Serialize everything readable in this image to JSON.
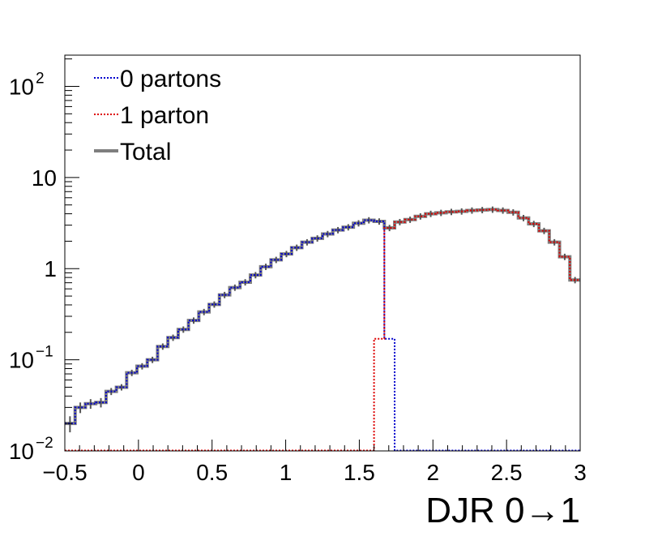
{
  "chart_data": {
    "type": "line",
    "subtype": "step-histogram",
    "title": "",
    "xlabel": "DJR 0→1",
    "ylabel": "",
    "xlim": [
      -0.5,
      3.0
    ],
    "ylim": [
      0.01,
      220
    ],
    "yscale": "log",
    "grid": false,
    "legend": "top-left",
    "bin_width": 0.07,
    "x_tick_labels": [
      "−0.5",
      "0",
      "0.5",
      "1",
      "1.5",
      "2",
      "2.5",
      "3"
    ],
    "x_ticks": [
      -0.5,
      0,
      0.5,
      1,
      1.5,
      2,
      2.5,
      3
    ],
    "y_tick_labels": [
      {
        "value": 100,
        "base": "10",
        "exp": "2"
      },
      {
        "value": 10,
        "base": "10",
        "exp": ""
      },
      {
        "value": 1,
        "base": "1",
        "exp": ""
      },
      {
        "value": 0.1,
        "base": "10",
        "exp": "−1"
      },
      {
        "value": 0.01,
        "base": "10",
        "exp": "−2"
      }
    ],
    "series": [
      {
        "name": "0 partons",
        "color": "#0000cc",
        "style": "dotted",
        "x_start": -0.5,
        "values": [
          0.02,
          0.03,
          0.033,
          0.034,
          0.045,
          0.05,
          0.072,
          0.085,
          0.1,
          0.14,
          0.175,
          0.215,
          0.27,
          0.335,
          0.405,
          0.515,
          0.62,
          0.71,
          0.85,
          1.05,
          1.25,
          1.45,
          1.7,
          1.95,
          2.15,
          2.4,
          2.65,
          2.85,
          3.15,
          3.4,
          3.3,
          0.17,
          0.0101,
          0.0101,
          0.0101,
          0.0101,
          0.0101,
          0.0101,
          0.0101,
          0.0101,
          0.0101,
          0.0101,
          0.0101,
          0.0101,
          0.0101,
          0.0101,
          0.0101,
          0.0101,
          0.0101,
          0.0101
        ]
      },
      {
        "name": "1 parton",
        "color": "#dd0000",
        "style": "dotted",
        "x_start": -0.5,
        "values": [
          0.0101,
          0.0101,
          0.0101,
          0.0101,
          0.0101,
          0.0101,
          0.0101,
          0.0101,
          0.0101,
          0.0101,
          0.0101,
          0.0101,
          0.0101,
          0.0101,
          0.0101,
          0.0101,
          0.0101,
          0.0101,
          0.0101,
          0.0101,
          0.0101,
          0.0101,
          0.0101,
          0.0101,
          0.0101,
          0.0101,
          0.0101,
          0.0101,
          0.0101,
          0.0101,
          0.17,
          2.8,
          3.25,
          3.45,
          3.75,
          4.0,
          4.1,
          4.2,
          4.25,
          4.35,
          4.4,
          4.45,
          4.35,
          4.15,
          3.6,
          3.1,
          2.6,
          1.95,
          1.35,
          0.75
        ]
      },
      {
        "name": "Total",
        "color": "#7f7f7f",
        "style": "solid",
        "x_start": -0.5,
        "values": [
          0.02,
          0.03,
          0.033,
          0.034,
          0.045,
          0.05,
          0.072,
          0.085,
          0.1,
          0.14,
          0.175,
          0.215,
          0.27,
          0.335,
          0.405,
          0.515,
          0.62,
          0.71,
          0.85,
          1.05,
          1.25,
          1.45,
          1.7,
          1.95,
          2.15,
          2.4,
          2.65,
          2.85,
          3.15,
          3.4,
          3.3,
          2.8,
          3.25,
          3.45,
          3.75,
          4.0,
          4.1,
          4.2,
          4.25,
          4.35,
          4.4,
          4.45,
          4.35,
          4.15,
          3.6,
          3.1,
          2.6,
          1.95,
          1.35,
          0.75
        ]
      }
    ]
  }
}
